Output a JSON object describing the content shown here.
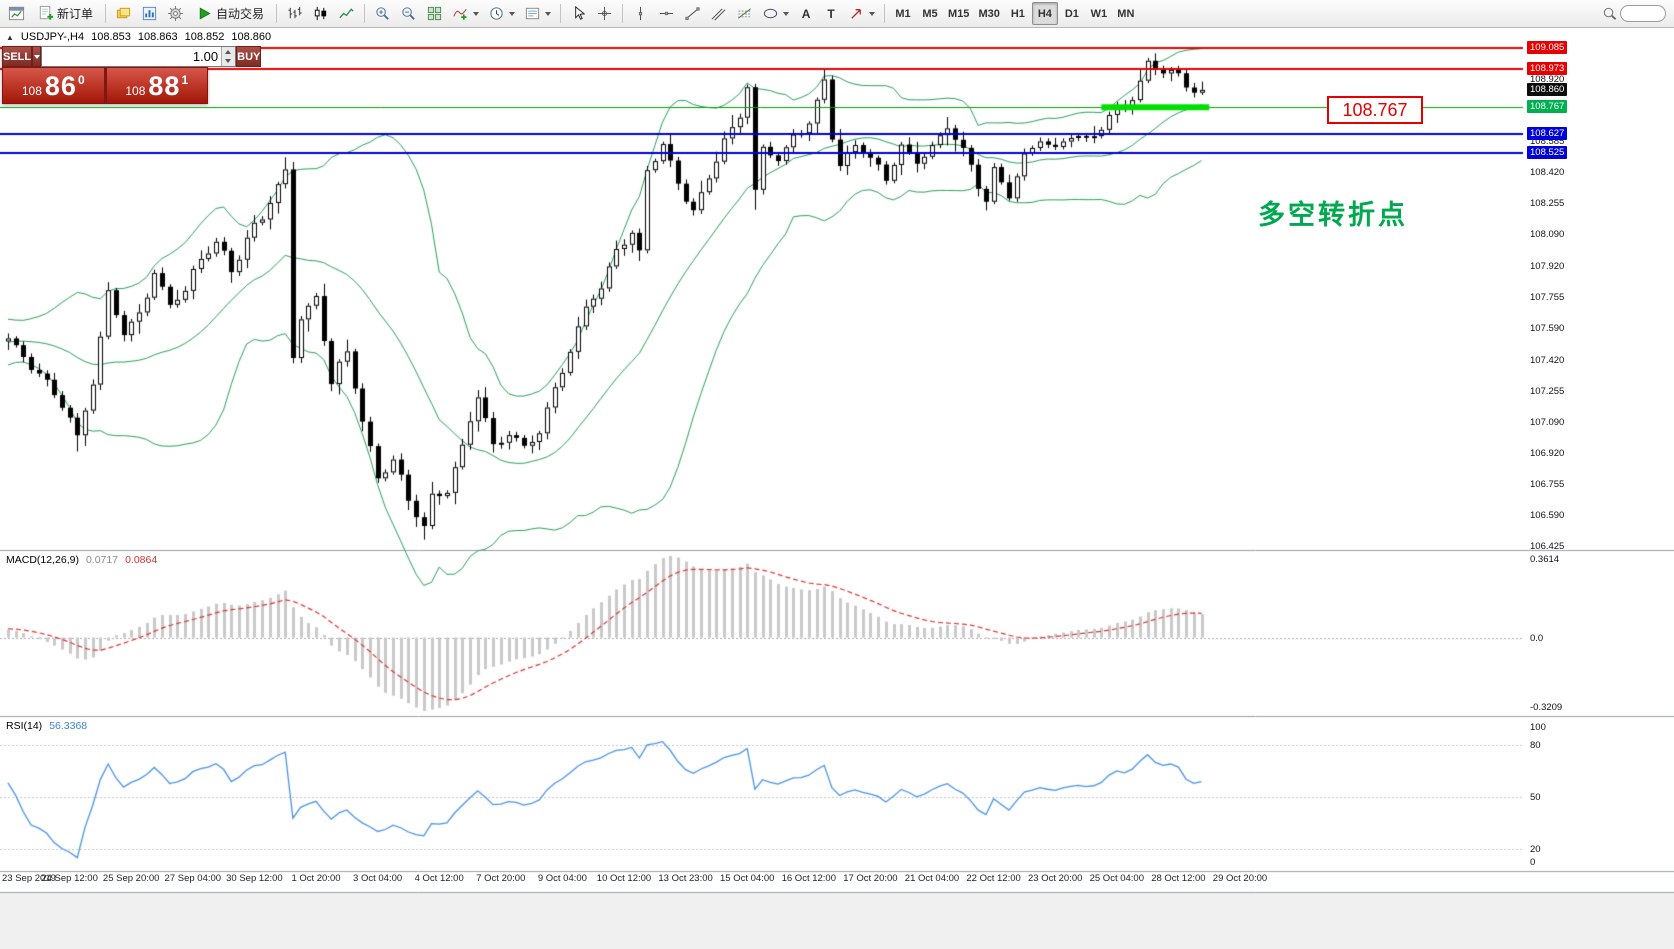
{
  "toolbar": {
    "new_order": "新订单",
    "auto_trading": "自动交易",
    "text_tool_glyph": "A",
    "label_tool_glyph": "T",
    "timeframes": [
      {
        "label": "M1",
        "active": false
      },
      {
        "label": "M5",
        "active": false
      },
      {
        "label": "M15",
        "active": false
      },
      {
        "label": "M30",
        "active": false
      },
      {
        "label": "H1",
        "active": false
      },
      {
        "label": "H4",
        "active": true
      },
      {
        "label": "D1",
        "active": false
      },
      {
        "label": "W1",
        "active": false
      },
      {
        "label": "MN",
        "active": false
      }
    ]
  },
  "chart": {
    "header": {
      "collapse_icon": "▲",
      "symbol": "USDJPY-,H4",
      "open": "108.853",
      "high": "108.863",
      "low": "108.852",
      "close": "108.860"
    },
    "one_click": {
      "sell_label": "SELL",
      "buy_label": "BUY",
      "volume": "1.00",
      "bid": {
        "prefix": "108",
        "big": "86",
        "sup": "0"
      },
      "ask": {
        "prefix": "108",
        "big": "88",
        "sup": "1"
      }
    },
    "objects": {
      "price_callout": "108.767",
      "cn_note": "多空转折点"
    }
  },
  "price_axis": {
    "tags": [
      {
        "label": "109.085",
        "price": 109.085,
        "bg": "#e60000",
        "fg": "#ffffff"
      },
      {
        "label": "108.973",
        "price": 108.973,
        "bg": "#e60000",
        "fg": "#ffffff"
      },
      {
        "label": "108.860",
        "price": 108.86,
        "bg": "#0d0d0d",
        "fg": "#ffffff"
      },
      {
        "label": "108.767",
        "price": 108.767,
        "bg": "#00b050",
        "fg": "#ffffff"
      },
      {
        "label": "108.627",
        "price": 108.627,
        "bg": "#0000d8",
        "fg": "#ffffff"
      },
      {
        "label": "108.525",
        "price": 108.525,
        "bg": "#0000d8",
        "fg": "#ffffff"
      }
    ],
    "ticks": [
      {
        "label": "108.920",
        "price": 108.92
      },
      {
        "label": "108.585",
        "price": 108.585
      },
      {
        "label": "108.420",
        "price": 108.42
      },
      {
        "label": "108.255",
        "price": 108.255
      },
      {
        "label": "108.090",
        "price": 108.09
      },
      {
        "label": "107.920",
        "price": 107.92
      },
      {
        "label": "107.755",
        "price": 107.755
      },
      {
        "label": "107.590",
        "price": 107.59
      },
      {
        "label": "107.420",
        "price": 107.42
      },
      {
        "label": "107.255",
        "price": 107.255
      },
      {
        "label": "107.090",
        "price": 107.09
      },
      {
        "label": "106.920",
        "price": 106.92
      },
      {
        "label": "106.755",
        "price": 106.755
      },
      {
        "label": "106.590",
        "price": 106.59
      },
      {
        "label": "106.425",
        "price": 106.425
      }
    ]
  },
  "time_axis": [
    "23 Sep 2019",
    "24 Sep 12:00",
    "25 Sep 20:00",
    "27 Sep 04:00",
    "30 Sep 12:00",
    "1 Oct 20:00",
    "3 Oct 04:00",
    "4 Oct 12:00",
    "7 Oct 20:00",
    "9 Oct 04:00",
    "10 Oct 12:00",
    "13 Oct 23:00",
    "15 Oct 04:00",
    "16 Oct 12:00",
    "17 Oct 20:00",
    "21 Oct 04:00",
    "22 Oct 12:00",
    "23 Oct 20:00",
    "25 Oct 04:00",
    "28 Oct 12:00",
    "29 Oct 20:00"
  ],
  "macd_panel": {
    "title": "MACD(12,26,9)",
    "main_value": "0.0717",
    "signal_value": "0.0864",
    "scale_top": "0.3614",
    "scale_zero": "0.0",
    "scale_bottom": "-0.3209"
  },
  "rsi_panel": {
    "title": "RSI(14)",
    "value": "56.3368",
    "scale": [
      "100",
      "80",
      "50",
      "20",
      "0"
    ],
    "levels": [
      80,
      50,
      20
    ]
  },
  "colors": {
    "up_candle": "#ffffff",
    "down_candle": "#000000",
    "wick": "#000000",
    "bands": "#2aa05a",
    "macd_hist": "#c9c9c9",
    "macd_signal": "#e23434",
    "rsi": "#4a94e8",
    "grid_sep": "#9aa0a6",
    "lime": "#00e000"
  },
  "chart_data": {
    "type": "candlestick",
    "symbol": "USDJPY",
    "period": "H4",
    "last_ohlc": {
      "open": 108.853,
      "high": 108.863,
      "low": 108.852,
      "close": 108.86
    },
    "y_axis_range": [
      106.41,
      109.19
    ],
    "bars_visible": 156,
    "approx_close_path": [
      [
        -45,
        107.35
      ],
      [
        -35,
        107.55
      ],
      [
        -25,
        107.3
      ],
      [
        -15,
        107.45
      ],
      [
        -8,
        107.6
      ],
      [
        0,
        107.52
      ],
      [
        3,
        107.4
      ],
      [
        5,
        107.3
      ],
      [
        7,
        107.18
      ],
      [
        9,
        107.0
      ],
      [
        11,
        107.3
      ],
      [
        13,
        107.78
      ],
      [
        15,
        107.55
      ],
      [
        17,
        107.65
      ],
      [
        19,
        107.88
      ],
      [
        21,
        107.72
      ],
      [
        23,
        107.8
      ],
      [
        25,
        107.95
      ],
      [
        27,
        108.05
      ],
      [
        29,
        107.9
      ],
      [
        31,
        108.08
      ],
      [
        33,
        108.18
      ],
      [
        35,
        108.33
      ],
      [
        36,
        108.42
      ],
      [
        37,
        107.45
      ],
      [
        38,
        107.65
      ],
      [
        40,
        107.75
      ],
      [
        42,
        107.3
      ],
      [
        44,
        107.45
      ],
      [
        46,
        107.1
      ],
      [
        48,
        106.8
      ],
      [
        50,
        106.9
      ],
      [
        52,
        106.65
      ],
      [
        54,
        106.52
      ],
      [
        55,
        106.7
      ],
      [
        57,
        106.73
      ],
      [
        59,
        106.95
      ],
      [
        61,
        107.22
      ],
      [
        63,
        106.95
      ],
      [
        65,
        107.05
      ],
      [
        67,
        106.95
      ],
      [
        69,
        107.02
      ],
      [
        71,
        107.25
      ],
      [
        73,
        107.48
      ],
      [
        75,
        107.72
      ],
      [
        77,
        107.8
      ],
      [
        79,
        108.0
      ],
      [
        81,
        108.1
      ],
      [
        82,
        108.0
      ],
      [
        83,
        108.45
      ],
      [
        85,
        108.58
      ],
      [
        87,
        108.35
      ],
      [
        89,
        108.2
      ],
      [
        91,
        108.4
      ],
      [
        93,
        108.6
      ],
      [
        95,
        108.72
      ],
      [
        96,
        108.88
      ],
      [
        97,
        108.3
      ],
      [
        98,
        108.55
      ],
      [
        100,
        108.5
      ],
      [
        102,
        108.62
      ],
      [
        104,
        108.68
      ],
      [
        106,
        108.9
      ],
      [
        107,
        108.6
      ],
      [
        108,
        108.45
      ],
      [
        110,
        108.58
      ],
      [
        112,
        108.5
      ],
      [
        114,
        108.38
      ],
      [
        116,
        108.55
      ],
      [
        118,
        108.48
      ],
      [
        120,
        108.55
      ],
      [
        122,
        108.66
      ],
      [
        124,
        108.52
      ],
      [
        126,
        108.36
      ],
      [
        127,
        108.28
      ],
      [
        128,
        108.45
      ],
      [
        130,
        108.3
      ],
      [
        132,
        108.5
      ],
      [
        134,
        108.6
      ],
      [
        136,
        108.56
      ],
      [
        138,
        108.62
      ],
      [
        140,
        108.58
      ],
      [
        142,
        108.66
      ],
      [
        144,
        108.76
      ],
      [
        146,
        108.82
      ],
      [
        148,
        109.0
      ],
      [
        150,
        108.95
      ],
      [
        152,
        108.94
      ],
      [
        154,
        108.87
      ],
      [
        155,
        108.86
      ]
    ],
    "wick_overrides": [
      {
        "i": 9,
        "low": 106.93
      },
      {
        "i": 36,
        "high": 108.5
      },
      {
        "i": 54,
        "low": 106.46
      },
      {
        "i": 97,
        "low": 108.22
      },
      {
        "i": 106,
        "high": 108.97
      },
      {
        "i": 148,
        "high": 109.03
      }
    ],
    "horizontal_lines": [
      {
        "price": 109.085,
        "color": "#e60000",
        "width": 2
      },
      {
        "price": 108.973,
        "color": "#e60000",
        "width": 2
      },
      {
        "price": 108.767,
        "color": "#00a000",
        "width": 1
      },
      {
        "price": 108.627,
        "color": "#0000d8",
        "width": 2
      },
      {
        "price": 108.525,
        "color": "#0000d8",
        "width": 2
      }
    ],
    "highlight_segment": {
      "price": 108.767,
      "from_bar": 142,
      "to_bar": 156,
      "thickness": 6
    },
    "indicators": [
      {
        "name": "Bollinger Bands",
        "period": 20,
        "deviation": 2
      },
      {
        "name": "MACD",
        "fast": 12,
        "slow": 26,
        "signal": 9,
        "main": 0.0717,
        "signal_value": 0.0864
      },
      {
        "name": "RSI",
        "period": 14,
        "value": 56.3368
      }
    ]
  }
}
